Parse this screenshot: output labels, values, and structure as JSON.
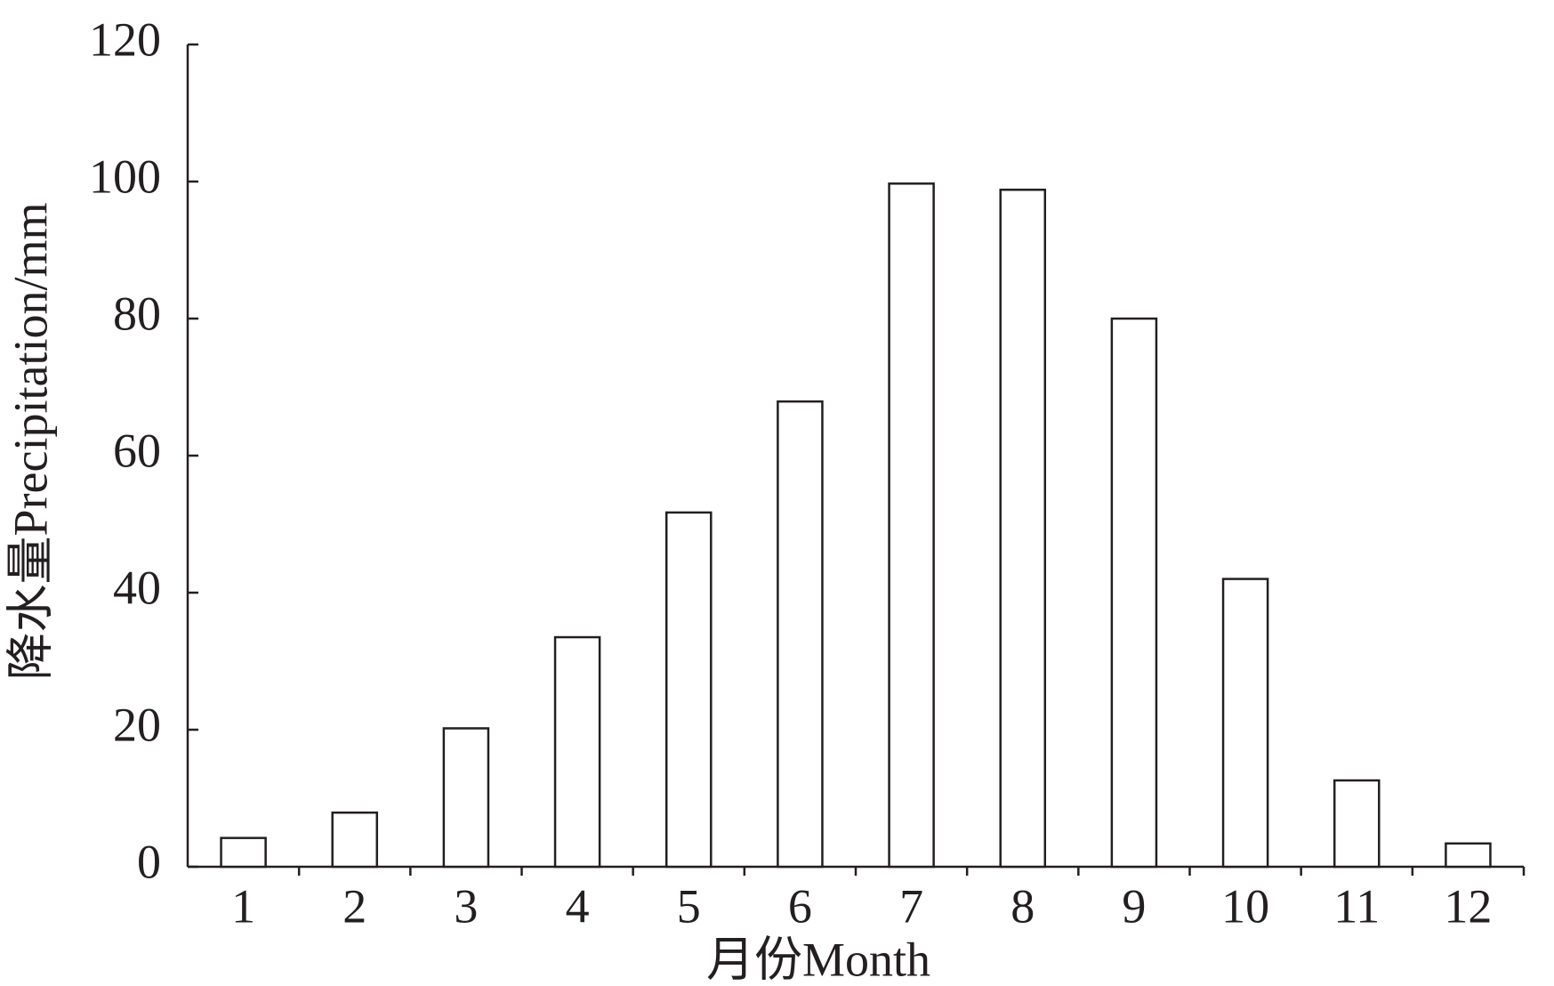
{
  "chart_data": {
    "type": "bar",
    "x_label": "月份Month",
    "y_label": "降水量Precipitation/mm",
    "categories": [
      "1",
      "2",
      "3",
      "4",
      "5",
      "6",
      "7",
      "8",
      "9",
      "10",
      "11",
      "12"
    ],
    "values": [
      4.2,
      7.9,
      20.2,
      33.5,
      51.7,
      67.9,
      99.7,
      98.8,
      80,
      42,
      12.6,
      3.4
    ],
    "color": "#ffffff",
    "ylim": [
      0,
      120
    ],
    "yticks": [
      0,
      20,
      40,
      60,
      80,
      100,
      120
    ],
    "grid": false
  }
}
